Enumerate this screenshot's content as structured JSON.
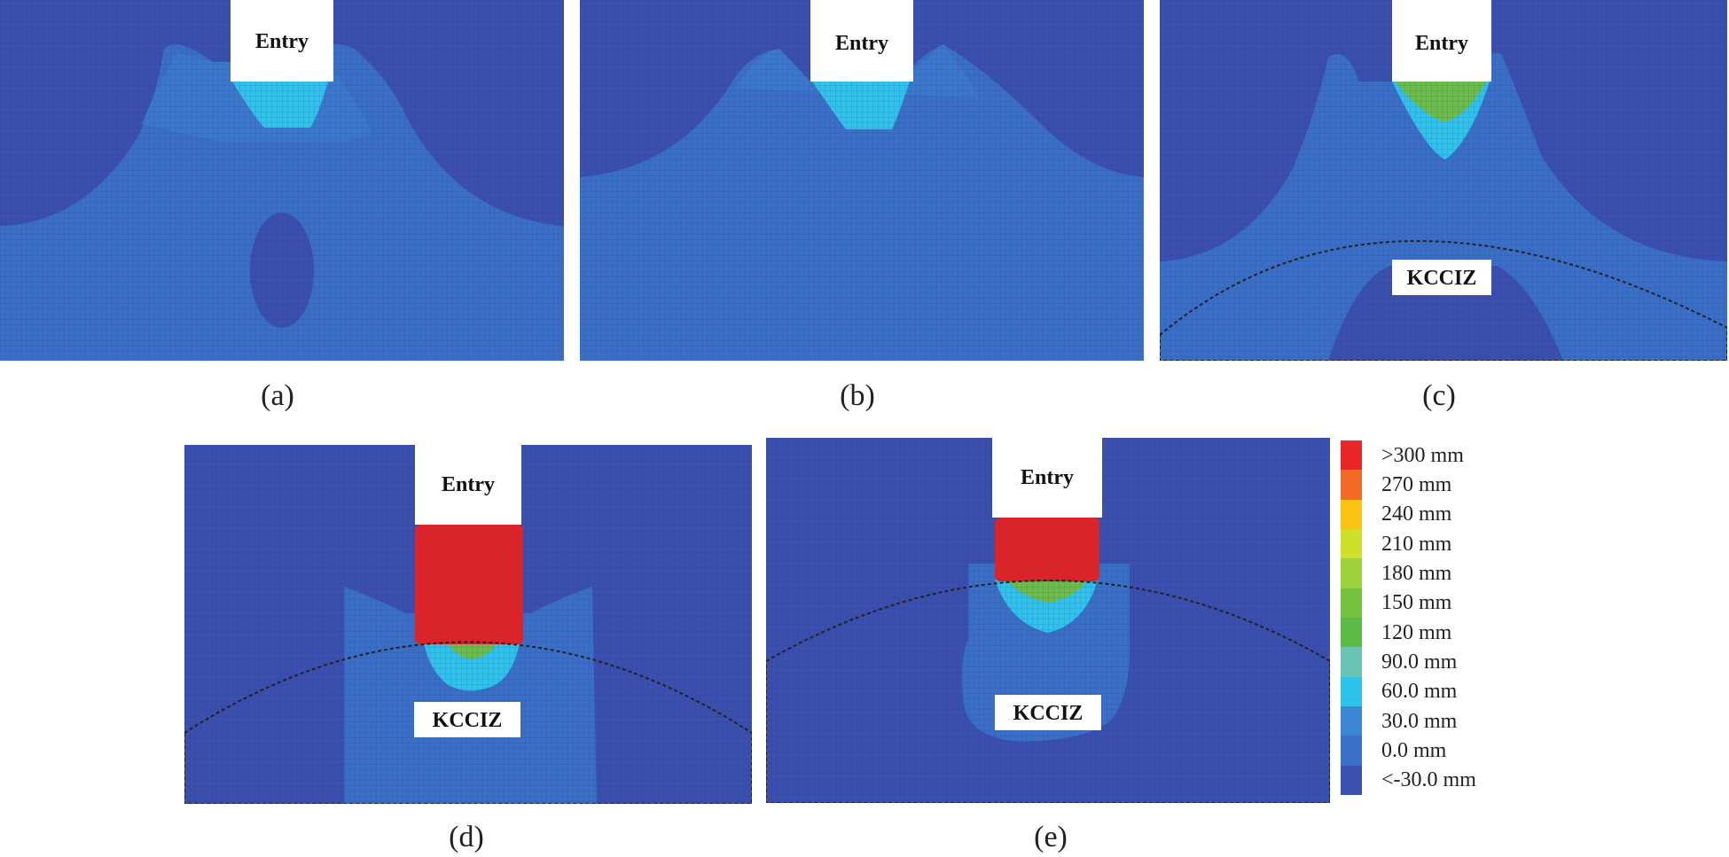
{
  "labels": {
    "entry": "Entry",
    "zone": "KCCIZ"
  },
  "captions": [
    "(a)",
    "(b)",
    "(c)",
    "(d)",
    "(e)"
  ],
  "legend": {
    "entries": [
      {
        "label": ">300 mm",
        "color": "#e8262a"
      },
      {
        "label": "270 mm",
        "color": "#f26a26"
      },
      {
        "label": "240 mm",
        "color": "#fbc412"
      },
      {
        "label": "210 mm",
        "color": "#cde02c"
      },
      {
        "label": "180 mm",
        "color": "#9ed23a"
      },
      {
        "label": "150 mm",
        "color": "#74c23e"
      },
      {
        "label": "120 mm",
        "color": "#5cba46"
      },
      {
        "label": "90.0 mm",
        "color": "#6bc4b4"
      },
      {
        "label": "60.0 mm",
        "color": "#2ec3ea"
      },
      {
        "label": "30.0 mm",
        "color": "#3b87d3"
      },
      {
        "label": "0.0 mm",
        "color": "#3a6fc7"
      },
      {
        "label": "<-30.0 mm",
        "color": "#3a4fae"
      }
    ]
  },
  "colors": {
    "deep": "#3a4fae",
    "base": "#3a6fc7",
    "mid": "#3b87d3",
    "cyan": "#2ec3ea",
    "teal": "#6bc4b4",
    "green": "#6cbd45",
    "red": "#d8242a"
  }
}
